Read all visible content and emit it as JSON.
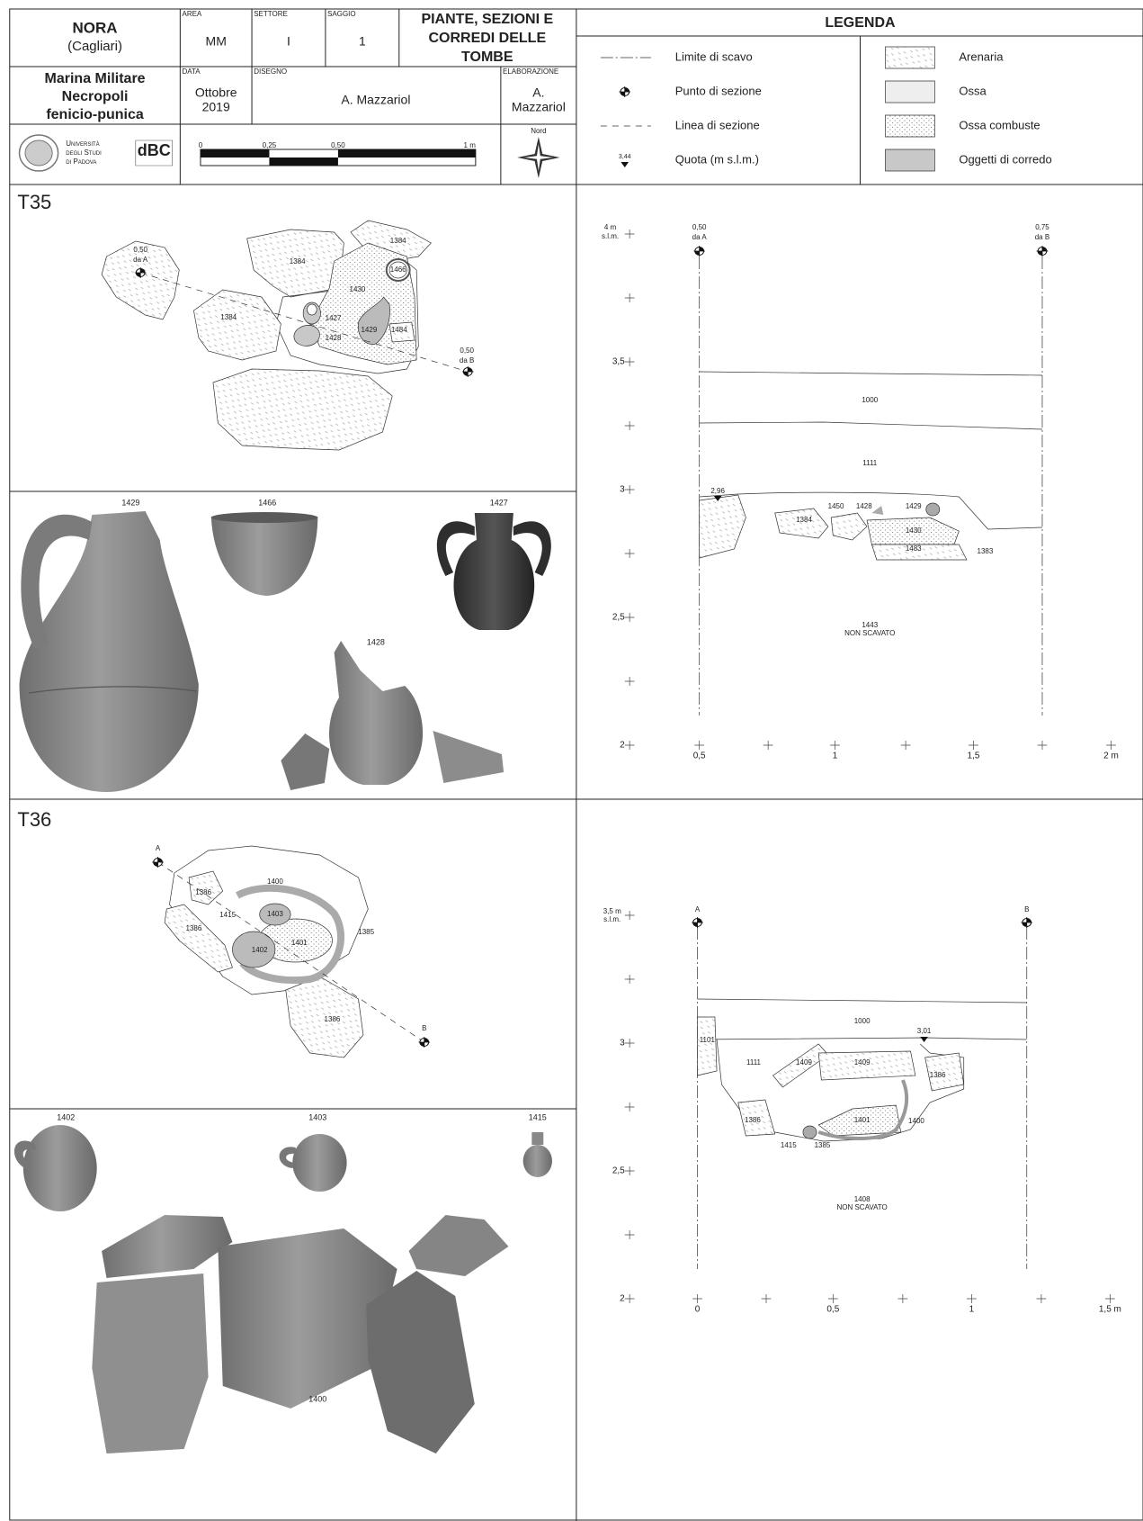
{
  "header": {
    "site": "NORA",
    "site_sub": "(Cagliari)",
    "area_label": "AREA",
    "area": "MM",
    "settore_label": "SETTORE",
    "settore": "I",
    "saggio_label": "SAGGIO",
    "saggio": "1",
    "title": [
      "PIANTE, SEZIONI E",
      "CORREDI DELLE",
      "TOMBE"
    ],
    "location": [
      "Marina Militare",
      "Necropoli",
      "fenicio-punica"
    ],
    "data_label": "DATA",
    "data": [
      "Ottobre",
      "2019"
    ],
    "disegno_label": "DISEGNO",
    "disegno": "A. Mazzariol",
    "elaborazione_label": "ELABORAZIONE",
    "elaborazione": [
      "A.",
      "Mazzariol"
    ],
    "university": [
      "Università",
      "degli Studi",
      "di Padova"
    ],
    "dbc": "dBC",
    "scale": [
      "0",
      "0,25",
      "0,50",
      "1 m"
    ],
    "north": "Nord"
  },
  "legend": {
    "title": "LEGENDA",
    "items": [
      "Limite di scavo",
      "Punto di sezione",
      "Linea di sezione",
      "Quota (m s.l.m.)",
      "Arenaria",
      "Ossa",
      "Ossa combuste",
      "Oggetti di corredo"
    ],
    "quota_example": "3,44"
  },
  "t35": {
    "label": "T35",
    "plan_labels": [
      "0,50",
      "da A",
      "1384",
      "1384",
      "1466",
      "1430",
      "1427",
      "1384",
      "1429",
      "1428",
      "1484",
      "0,50",
      "da B"
    ],
    "photo_labels": [
      "1429",
      "1466",
      "1427",
      "1428"
    ],
    "section_labels": [
      "4 m",
      "s.l.m.",
      "0,50",
      "da A",
      "0,75",
      "da B",
      "1000",
      "1111",
      "2,96",
      "1384",
      "1450",
      "1428",
      "1429",
      "1430",
      "1483",
      "1383",
      "1443",
      "NON SCAVATO"
    ],
    "section_y_ticks": [
      "3,5",
      "3",
      "2,5",
      "2"
    ],
    "section_x_ticks": [
      "0,5",
      "1",
      "1,5",
      "2 m"
    ]
  },
  "t36": {
    "label": "T36",
    "plan_labels": [
      "A",
      "1386",
      "1400",
      "1415",
      "1403",
      "1386",
      "1385",
      "1401",
      "1402",
      "1386",
      "B"
    ],
    "photo_labels": [
      "1402",
      "1403",
      "1415",
      "1400"
    ],
    "section_labels": [
      "3,5 m",
      "s.l.m.",
      "A",
      "B",
      "1000",
      "3,01",
      "1101",
      "1111",
      "1409",
      "1409",
      "1386",
      "1386",
      "1401",
      "1400",
      "1415",
      "1385",
      "1408",
      "NON SCAVATO"
    ],
    "section_y_ticks": [
      "3",
      "2,5",
      "2"
    ],
    "section_x_ticks": [
      "0",
      "0,5",
      "1",
      "1,5 m"
    ]
  }
}
